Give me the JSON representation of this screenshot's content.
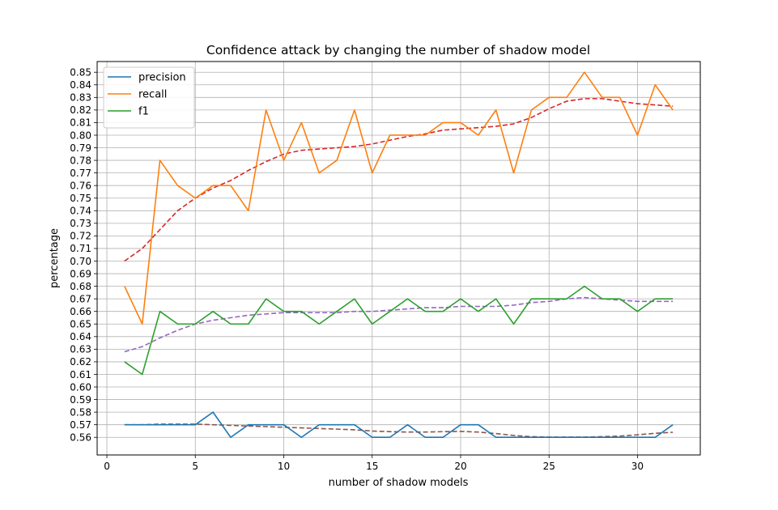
{
  "chart_data": {
    "type": "line",
    "title": "Confidence attack by changing the number of shadow model",
    "xlabel": "number of shadow models",
    "ylabel": "percentage",
    "xlim": [
      -0.55,
      33.55
    ],
    "ylim": [
      0.546,
      0.8585
    ],
    "xticks": [
      0,
      5,
      10,
      15,
      20,
      25,
      30
    ],
    "yticks": [
      0.56,
      0.57,
      0.58,
      0.59,
      0.6,
      0.61,
      0.62,
      0.63,
      0.64,
      0.65,
      0.66,
      0.67,
      0.68,
      0.69,
      0.7,
      0.71,
      0.72,
      0.73,
      0.74,
      0.75,
      0.76,
      0.77,
      0.78,
      0.79,
      0.8,
      0.81,
      0.82,
      0.83,
      0.84,
      0.85
    ],
    "grid": true,
    "legend_position": "top-left",
    "x": [
      1,
      2,
      3,
      4,
      5,
      6,
      7,
      8,
      9,
      10,
      11,
      12,
      13,
      14,
      15,
      16,
      17,
      18,
      19,
      20,
      21,
      22,
      23,
      24,
      25,
      26,
      27,
      28,
      29,
      30,
      31,
      32
    ],
    "series": [
      {
        "name": "precision",
        "color": "#1f77b4",
        "style": "solid",
        "legend": true,
        "values": [
          0.57,
          0.57,
          0.57,
          0.57,
          0.57,
          0.58,
          0.56,
          0.57,
          0.57,
          0.57,
          0.56,
          0.57,
          0.57,
          0.57,
          0.56,
          0.56,
          0.57,
          0.56,
          0.56,
          0.57,
          0.57,
          0.56,
          0.56,
          0.56,
          0.56,
          0.56,
          0.56,
          0.56,
          0.56,
          0.56,
          0.56,
          0.57
        ]
      },
      {
        "name": "recall",
        "color": "#ff7f0e",
        "style": "solid",
        "legend": true,
        "values": [
          0.68,
          0.65,
          0.78,
          0.76,
          0.75,
          0.76,
          0.76,
          0.74,
          0.82,
          0.78,
          0.81,
          0.77,
          0.78,
          0.82,
          0.77,
          0.8,
          0.8,
          0.8,
          0.81,
          0.81,
          0.8,
          0.82,
          0.77,
          0.82,
          0.83,
          0.83,
          0.85,
          0.83,
          0.83,
          0.8,
          0.84,
          0.82
        ]
      },
      {
        "name": "f1",
        "color": "#2ca02c",
        "style": "solid",
        "legend": true,
        "values": [
          0.62,
          0.61,
          0.66,
          0.65,
          0.65,
          0.66,
          0.65,
          0.65,
          0.67,
          0.66,
          0.66,
          0.65,
          0.66,
          0.67,
          0.65,
          0.66,
          0.67,
          0.66,
          0.66,
          0.67,
          0.66,
          0.67,
          0.65,
          0.67,
          0.67,
          0.67,
          0.68,
          0.67,
          0.67,
          0.66,
          0.67,
          0.67
        ]
      },
      {
        "color": "#d62728",
        "style": "dashed",
        "legend": false,
        "values": [
          0.7,
          0.71,
          0.725,
          0.74,
          0.75,
          0.758,
          0.764,
          0.772,
          0.779,
          0.785,
          0.788,
          0.789,
          0.79,
          0.791,
          0.793,
          0.796,
          0.799,
          0.801,
          0.804,
          0.805,
          0.806,
          0.807,
          0.809,
          0.814,
          0.821,
          0.827,
          0.829,
          0.829,
          0.827,
          0.825,
          0.824,
          0.823
        ]
      },
      {
        "color": "#9467bd",
        "style": "dashed",
        "legend": false,
        "values": [
          0.628,
          0.632,
          0.639,
          0.645,
          0.65,
          0.653,
          0.655,
          0.657,
          0.658,
          0.659,
          0.659,
          0.659,
          0.659,
          0.66,
          0.66,
          0.661,
          0.662,
          0.663,
          0.663,
          0.664,
          0.664,
          0.664,
          0.665,
          0.667,
          0.668,
          0.67,
          0.671,
          0.67,
          0.669,
          0.668,
          0.668,
          0.668
        ]
      },
      {
        "color": "#8c564b",
        "style": "dashed",
        "legend": false,
        "values": [
          0.57,
          0.57,
          0.5705,
          0.5705,
          0.5705,
          0.57,
          0.5695,
          0.569,
          0.5685,
          0.568,
          0.5675,
          0.567,
          0.5665,
          0.566,
          0.565,
          0.5645,
          0.5642,
          0.5642,
          0.5645,
          0.5647,
          0.5642,
          0.563,
          0.5615,
          0.5605,
          0.5602,
          0.5602,
          0.5602,
          0.5605,
          0.561,
          0.562,
          0.5632,
          0.564
        ]
      }
    ]
  }
}
